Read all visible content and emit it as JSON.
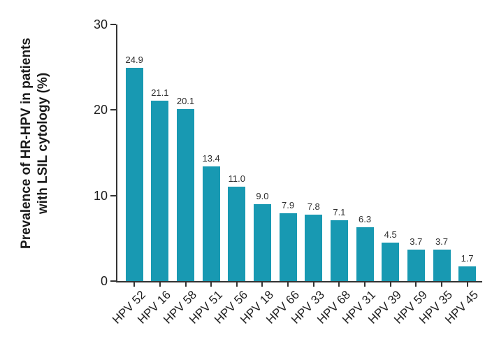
{
  "chart_data": {
    "type": "bar",
    "title": "",
    "xlabel": "",
    "ylabel_lines": [
      "Prevalence of HR-HPV in patients",
      "with LSIL cytology (%)"
    ],
    "categories": [
      "HPV 52",
      "HPV 16",
      "HPV 58",
      "HPV 51",
      "HPV 56",
      "HPV 18",
      "HPV 66",
      "HPV 33",
      "HPV 68",
      "HPV 31",
      "HPV 39",
      "HPV 59",
      "HPV 35",
      "HPV 45"
    ],
    "values": [
      24.9,
      21.1,
      20.1,
      13.4,
      11.0,
      9.0,
      7.9,
      7.8,
      7.1,
      6.3,
      4.5,
      3.7,
      3.7,
      1.7
    ],
    "value_labels": [
      "24.9",
      "21.1",
      "20.1",
      "13.4",
      "11.0",
      "9.0",
      "7.9",
      "7.8",
      "7.1",
      "6.3",
      "4.5",
      "3.7",
      "3.7",
      "1.7"
    ],
    "yticks": [
      0,
      10,
      20,
      30
    ],
    "ylim": [
      0,
      30
    ],
    "grid": false,
    "legend": "none",
    "bar_color": "#1899B2",
    "axis_color": "#333333"
  }
}
